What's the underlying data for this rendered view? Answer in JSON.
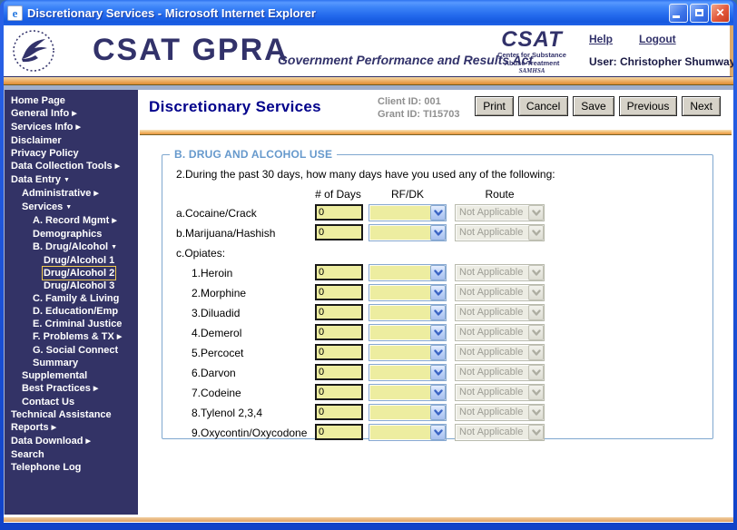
{
  "window": {
    "title": "Discretionary Services - Microsoft Internet Explorer"
  },
  "header": {
    "brand_main": "CSAT GPRA",
    "brand_tagline": "Government Performance and Results Act",
    "csat_logo": {
      "line1": "CSAT",
      "line2": "Center for Substance",
      "line3": "Abuse Treatment",
      "line4": "SAMHSA"
    },
    "help_label": "Help",
    "logout_label": "Logout",
    "user": "User: Christopher Shumway"
  },
  "sidebar": {
    "items": [
      {
        "label": "Home Page",
        "level": 0
      },
      {
        "label": "General Info",
        "level": 0,
        "arrow": "right"
      },
      {
        "label": "Services Info",
        "level": 0,
        "arrow": "right"
      },
      {
        "label": "Disclaimer",
        "level": 0
      },
      {
        "label": "Privacy Policy",
        "level": 0
      },
      {
        "label": "Data Collection Tools",
        "level": 0,
        "arrow": "right"
      },
      {
        "label": "Data Entry",
        "level": 0,
        "arrow": "down"
      },
      {
        "label": "Administrative",
        "level": 1,
        "arrow": "right"
      },
      {
        "label": "Services",
        "level": 1,
        "arrow": "down"
      },
      {
        "label": "A. Record Mgmt",
        "level": 2,
        "arrow": "right"
      },
      {
        "label": "Demographics",
        "level": 2
      },
      {
        "label": "B. Drug/Alcohol",
        "level": 2,
        "arrow": "down"
      },
      {
        "label": "Drug/Alcohol 1",
        "level": 3
      },
      {
        "label": "Drug/Alcohol 2",
        "level": 3,
        "selected": true
      },
      {
        "label": "Drug/Alcohol 3",
        "level": 3
      },
      {
        "label": "C. Family & Living",
        "level": 2
      },
      {
        "label": "D. Education/Emp",
        "level": 2
      },
      {
        "label": "E. Criminal Justice",
        "level": 2
      },
      {
        "label": "F. Problems & TX",
        "level": 2,
        "arrow": "right"
      },
      {
        "label": "G. Social Connect",
        "level": 2
      },
      {
        "label": "Summary",
        "level": 2
      },
      {
        "label": "Supplemental",
        "level": 1
      },
      {
        "label": "Best Practices",
        "level": 1,
        "arrow": "right"
      },
      {
        "label": "Contact Us",
        "level": 1
      },
      {
        "label": "Technical Assistance",
        "level": 0
      },
      {
        "label": "Reports",
        "level": 0,
        "arrow": "right"
      },
      {
        "label": "Data Download",
        "level": 0,
        "arrow": "right"
      },
      {
        "label": "Search",
        "level": 0
      },
      {
        "label": "Telephone Log",
        "level": 0
      }
    ]
  },
  "main": {
    "page_title": "Discretionary Services",
    "client_id": "Client ID: 001",
    "grant_id": "Grant ID: TI15703",
    "buttons": [
      "Print",
      "Cancel",
      "Save",
      "Previous",
      "Next"
    ],
    "section": {
      "legend": "B. DRUG AND ALCOHOL USE",
      "question": "2.During the past 30 days, how many days have you used any of the following:",
      "columns": [
        "# of Days",
        "RF/DK",
        "Route"
      ],
      "rows": [
        {
          "label": "a.Cocaine/Crack",
          "indent": 0,
          "type": "input",
          "days": "0",
          "rfdk": "",
          "route": "Not Applicable"
        },
        {
          "label": "b.Marijuana/Hashish",
          "indent": 0,
          "type": "input",
          "days": "0",
          "rfdk": "",
          "route": "Not Applicable"
        },
        {
          "label": "c.Opiates:",
          "indent": 0,
          "type": "label"
        },
        {
          "label": "1.Heroin",
          "indent": 1,
          "type": "input",
          "days": "0",
          "rfdk": "",
          "route": "Not Applicable"
        },
        {
          "label": "2.Morphine",
          "indent": 1,
          "type": "input",
          "days": "0",
          "rfdk": "",
          "route": "Not Applicable"
        },
        {
          "label": "3.Diluadid",
          "indent": 1,
          "type": "input",
          "days": "0",
          "rfdk": "",
          "route": "Not Applicable"
        },
        {
          "label": "4.Demerol",
          "indent": 1,
          "type": "input",
          "days": "0",
          "rfdk": "",
          "route": "Not Applicable"
        },
        {
          "label": "5.Percocet",
          "indent": 1,
          "type": "input",
          "days": "0",
          "rfdk": "",
          "route": "Not Applicable"
        },
        {
          "label": "6.Darvon",
          "indent": 1,
          "type": "input",
          "days": "0",
          "rfdk": "",
          "route": "Not Applicable"
        },
        {
          "label": "7.Codeine",
          "indent": 1,
          "type": "input",
          "days": "0",
          "rfdk": "",
          "route": "Not Applicable"
        },
        {
          "label": "8.Tylenol 2,3,4",
          "indent": 1,
          "type": "input",
          "days": "0",
          "rfdk": "",
          "route": "Not Applicable"
        },
        {
          "label": "9.Oxycontin/Oxycodone",
          "indent": 1,
          "type": "input",
          "days": "0",
          "rfdk": "",
          "route": "Not Applicable"
        }
      ]
    }
  },
  "colors": {
    "sidebar_bg": "#333366",
    "field_yellow": "#EDEDA0",
    "legend_blue": "#6699CC",
    "fieldset_border": "#7FA7CF",
    "title_navy": "#00008B",
    "id_gray": "#8F8F8F",
    "selected_outline": "#F2CB4E",
    "titlebar_blue": "#2268EC",
    "banner_orange": "#EBAA5E"
  }
}
